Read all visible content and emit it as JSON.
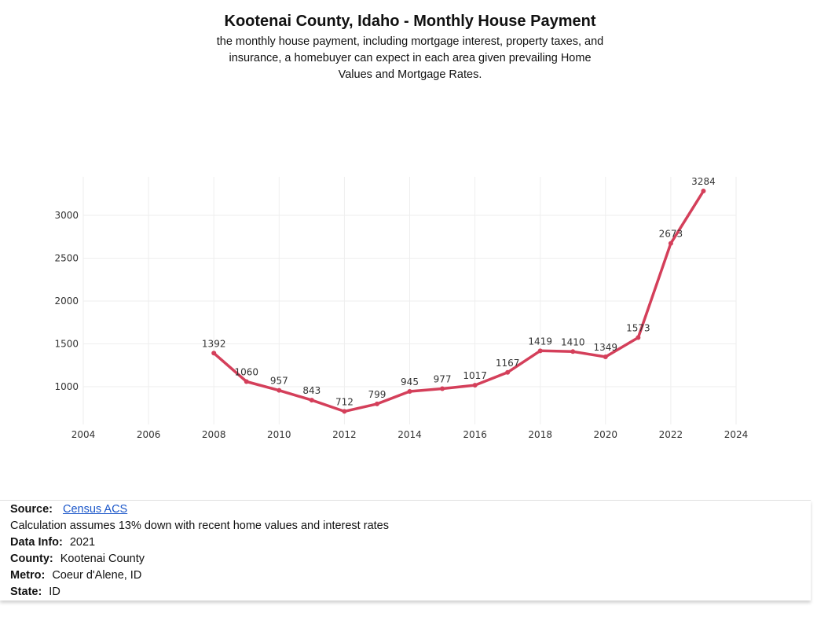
{
  "header": {
    "title": "Kootenai County, Idaho - Monthly House Payment",
    "subtitle": "the monthly house payment, including mortgage interest, property taxes, and insurance, a homebuyer can expect in each area given prevailing Home Values and Mortgage Rates."
  },
  "chart_data": {
    "type": "line",
    "title": "Kootenai County, Idaho - Monthly House Payment",
    "xlabel": "",
    "ylabel": "",
    "x": [
      2008,
      2009,
      2010,
      2011,
      2012,
      2013,
      2014,
      2015,
      2016,
      2017,
      2018,
      2019,
      2020,
      2021,
      2022,
      2023
    ],
    "values": [
      1392,
      1060,
      957,
      843,
      712,
      799,
      945,
      977,
      1017,
      1167,
      1419,
      1410,
      1349,
      1573,
      2673,
      3284
    ],
    "data_labels": [
      "1392",
      "1060",
      "957",
      "843",
      "712",
      "799",
      "945",
      "977",
      "1017",
      "1167",
      "1419",
      "1410",
      "1349",
      "1573",
      "2673",
      "3284"
    ],
    "xlim": [
      2004,
      2024
    ],
    "ylim": [
      500,
      3500
    ],
    "x_ticks": [
      2004,
      2006,
      2008,
      2010,
      2012,
      2014,
      2016,
      2018,
      2020,
      2022,
      2024
    ],
    "y_ticks": [
      1000,
      1500,
      2000,
      2500,
      3000
    ],
    "grid": true,
    "line_color": "#d43f5a"
  },
  "footer": {
    "source_label": "Source:",
    "source_link": "Census ACS",
    "note": "Calculation assumes 13% down with recent home values and interest rates",
    "data_info_label": "Data Info:",
    "data_info_value": "2021",
    "county_label": "County:",
    "county_value": "Kootenai County",
    "metro_label": "Metro:",
    "metro_value": "Coeur d'Alene, ID",
    "state_label": "State:",
    "state_value": "ID"
  }
}
